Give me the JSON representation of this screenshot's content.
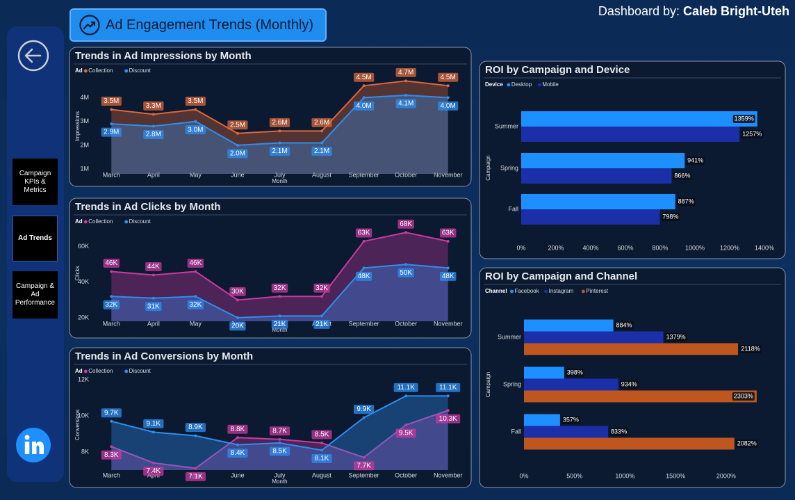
{
  "header": {
    "title": "Ad Engagement Trends (Monthly)",
    "credit_prefix": "Dashboard by:",
    "credit_name": "Caleb Bright-Uteh"
  },
  "nav": [
    "Campaign KPIs & Metrics",
    "Ad Trends",
    "Campaign & Ad Performance"
  ],
  "chart_data": [
    {
      "type": "area",
      "title": "Trends in Ad Impressions by Month",
      "legend_title": "Ad",
      "x_label": "Month",
      "y_label": "Impressions",
      "categories": [
        "March",
        "April",
        "May",
        "June",
        "July",
        "August",
        "September",
        "October",
        "November"
      ],
      "series": [
        {
          "name": "Collection",
          "color": "#d9683a",
          "values": [
            3500000,
            3300000,
            3500000,
            2500000,
            2600000,
            2600000,
            4500000,
            4700000,
            4500000
          ],
          "value_labels": [
            "3.5M",
            "3.3M",
            "3.5M",
            "2.5M",
            "2.6M",
            "2.6M",
            "4.5M",
            "4.7M",
            "4.5M"
          ]
        },
        {
          "name": "Discount",
          "color": "#2e8ef0",
          "values": [
            2900000,
            2800000,
            3000000,
            2000000,
            2100000,
            2100000,
            4000000,
            4100000,
            4000000
          ],
          "value_labels": [
            "2.9M",
            "2.8M",
            "3.0M",
            "2.0M",
            "2.1M",
            "2.1M",
            "4.0M",
            "4.1M",
            "4.0M"
          ]
        }
      ],
      "ylim": [
        800000,
        4800000
      ],
      "yticks": [
        {
          "value": 1000000,
          "label": "1M"
        },
        {
          "value": 2000000,
          "label": "2M"
        },
        {
          "value": 3000000,
          "label": "3M"
        },
        {
          "value": 4000000,
          "label": "4M"
        }
      ]
    },
    {
      "type": "area",
      "title": "Trends in Ad Clicks by Month",
      "legend_title": "Ad",
      "x_label": "Month",
      "y_label": "Clicks",
      "categories": [
        "March",
        "April",
        "May",
        "June",
        "July",
        "August",
        "September",
        "October",
        "November"
      ],
      "series": [
        {
          "name": "Collection",
          "color": "#c83aa0",
          "values": [
            46000,
            44000,
            46000,
            30000,
            32000,
            32000,
            63000,
            68000,
            63000
          ],
          "value_labels": [
            "46K",
            "44K",
            "46K",
            "30K",
            "32K",
            "32K",
            "63K",
            "68K",
            "63K"
          ]
        },
        {
          "name": "Discount",
          "color": "#2e8ef0",
          "values": [
            32000,
            31000,
            32000,
            20000,
            21000,
            21000,
            48000,
            50000,
            48000
          ],
          "value_labels": [
            "32K",
            "31K",
            "32K",
            "20K",
            "21K",
            "21K",
            "48K",
            "50K",
            "48K"
          ]
        }
      ],
      "ylim": [
        18000,
        72000
      ],
      "yticks": [
        {
          "value": 20000,
          "label": "20K"
        },
        {
          "value": 40000,
          "label": "40K"
        },
        {
          "value": 60000,
          "label": "60K"
        }
      ]
    },
    {
      "type": "area",
      "title": "Trends in Ad Conversions by Month",
      "legend_title": "Ad",
      "x_label": "Month",
      "y_label": "Conversions",
      "categories": [
        "March",
        "April",
        "May",
        "June",
        "July",
        "August",
        "September",
        "October",
        "November"
      ],
      "series": [
        {
          "name": "Collection",
          "color": "#c83aa0",
          "values": [
            8300,
            7400,
            7100,
            8800,
            8700,
            8500,
            7700,
            9500,
            10300
          ],
          "value_labels": [
            "8.3K",
            "7.4K",
            "7.1K",
            "8.8K",
            "8.7K",
            "8.5K",
            "7.7K",
            "9.5K",
            "10.3K"
          ]
        },
        {
          "name": "Discount",
          "color": "#2e8ef0",
          "values": [
            9700,
            9100,
            8900,
            8400,
            8500,
            8100,
            9900,
            11100,
            11100
          ],
          "value_labels": [
            "9.7K",
            "9.1K",
            "8.9K",
            "8.4K",
            "8.5K",
            "8.1K",
            "9.9K",
            "11.1K",
            "11.1K"
          ]
        }
      ],
      "ylim": [
        7000,
        12000
      ],
      "yticks": [
        {
          "value": 8000,
          "label": "8K"
        },
        {
          "value": 10000,
          "label": "10K"
        },
        {
          "value": 12000,
          "label": "12K"
        }
      ]
    },
    {
      "type": "hbar",
      "title": "ROI by Campaign and Device",
      "legend_title": "Device",
      "y_label": "Campaign",
      "categories": [
        "Summer",
        "Spring",
        "Fall"
      ],
      "series": [
        {
          "name": "Desktop",
          "color": "#1e8fff",
          "values": [
            1359,
            941,
            887
          ],
          "value_labels": [
            "1359%",
            "941%",
            "887%"
          ]
        },
        {
          "name": "Mobile",
          "color": "#1a2fa8",
          "values": [
            1257,
            866,
            798
          ],
          "value_labels": [
            "1257%",
            "866%",
            "798%"
          ]
        }
      ],
      "xlim": [
        0,
        1400
      ],
      "xticks": [
        {
          "value": 0,
          "label": "0%"
        },
        {
          "value": 200,
          "label": "200%"
        },
        {
          "value": 400,
          "label": "400%"
        },
        {
          "value": 600,
          "label": "600%"
        },
        {
          "value": 800,
          "label": "800%"
        },
        {
          "value": 1000,
          "label": "1000%"
        },
        {
          "value": 1200,
          "label": "1200%"
        },
        {
          "value": 1400,
          "label": "1400%"
        }
      ]
    },
    {
      "type": "hbar",
      "title": "ROI by Campaign and Channel",
      "legend_title": "Channel",
      "y_label": "Campaign",
      "categories": [
        "Summer",
        "Spring",
        "Fall"
      ],
      "series": [
        {
          "name": "Facebook",
          "color": "#1e8fff",
          "values": [
            884,
            398,
            357
          ],
          "value_labels": [
            "884%",
            "398%",
            "357%"
          ]
        },
        {
          "name": "Instagram",
          "color": "#1a2fa8",
          "values": [
            1379,
            934,
            833
          ],
          "value_labels": [
            "1379%",
            "934%",
            "833%"
          ]
        },
        {
          "name": "Pinterest",
          "color": "#c0561f",
          "values": [
            2118,
            2303,
            2082
          ],
          "value_labels": [
            "2118%",
            "2303%",
            "2082%"
          ]
        }
      ],
      "xlim": [
        0,
        2400
      ],
      "xticks": [
        {
          "value": 0,
          "label": "0%"
        },
        {
          "value": 500,
          "label": "500%"
        },
        {
          "value": 1000,
          "label": "1000%"
        },
        {
          "value": 1500,
          "label": "1500%"
        },
        {
          "value": 2000,
          "label": "2000%"
        }
      ]
    }
  ]
}
